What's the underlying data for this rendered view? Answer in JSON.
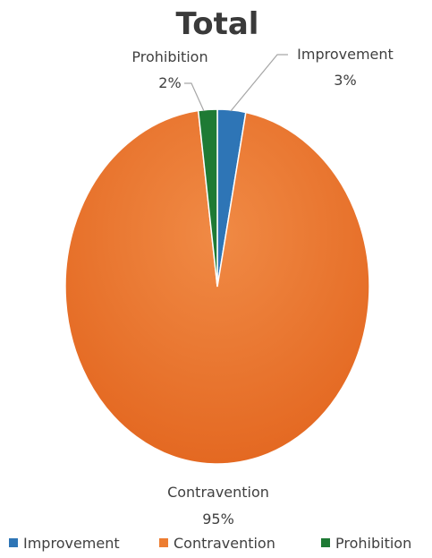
{
  "chart_data": {
    "type": "pie",
    "title": "Total",
    "slices": [
      {
        "name": "Improvement",
        "value": 3,
        "label": "3%",
        "color": "#2e75b6"
      },
      {
        "name": "Contravention",
        "value": 95,
        "label": "95%",
        "color": "#ed7d31"
      },
      {
        "name": "Prohibition",
        "value": 2,
        "label": "2%",
        "color": "#1e7a34"
      }
    ],
    "legend_position": "bottom"
  }
}
